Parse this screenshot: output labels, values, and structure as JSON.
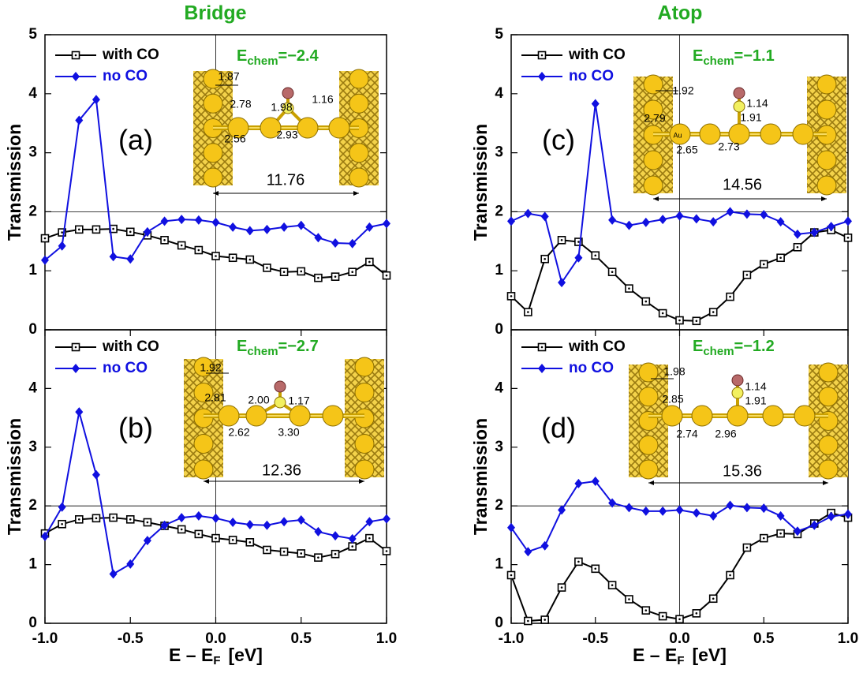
{
  "chart_data": [
    {
      "type": "line",
      "title": "Bridge",
      "panel_label": "(a)",
      "ylabel": "Transmission",
      "echem": {
        "symbol": "E",
        "subscript": "chem",
        "value_text": "=−2.4"
      },
      "inset_labels": [
        "1.87",
        "2.78",
        "1.98",
        "1.16",
        "2.56",
        "2.93",
        "11.76"
      ],
      "x": [
        -1.0,
        -0.9,
        -0.8,
        -0.7,
        -0.6,
        -0.5,
        -0.4,
        -0.3,
        -0.2,
        -0.1,
        0.0,
        0.1,
        0.2,
        0.3,
        0.4,
        0.5,
        0.6,
        0.7,
        0.8,
        0.9,
        1.0
      ],
      "series": [
        {
          "name": "with CO",
          "color": "#000000",
          "marker": "square",
          "values": [
            1.55,
            1.65,
            1.7,
            1.7,
            1.71,
            1.66,
            1.6,
            1.52,
            1.43,
            1.35,
            1.25,
            1.22,
            1.19,
            1.05,
            0.98,
            0.99,
            0.88,
            0.9,
            0.98,
            1.15,
            0.92
          ]
        },
        {
          "name": "no CO",
          "color": "#1010e0",
          "marker": "diamond",
          "values": [
            1.18,
            1.42,
            3.55,
            3.9,
            1.24,
            1.2,
            1.66,
            1.84,
            1.87,
            1.86,
            1.82,
            1.74,
            1.68,
            1.7,
            1.74,
            1.77,
            1.56,
            1.47,
            1.46,
            1.74,
            1.8
          ]
        }
      ],
      "xlim": [
        -1,
        1
      ],
      "ylim": [
        0,
        5
      ],
      "yticks": [
        0,
        1,
        2,
        3,
        4,
        5
      ],
      "hline": 2,
      "vline": 0
    },
    {
      "type": "line",
      "panel_label": "(b)",
      "ylabel": "Transmission",
      "xlabel": {
        "text": "E – E",
        "subscript": "F",
        "unit": "[eV]"
      },
      "echem": {
        "symbol": "E",
        "subscript": "chem",
        "value_text": "=−2.7"
      },
      "inset_labels": [
        "1.92",
        "2.81",
        "2.00",
        "1.17",
        "2.62",
        "3.30",
        "12.36"
      ],
      "x": [
        -1.0,
        -0.9,
        -0.8,
        -0.7,
        -0.6,
        -0.5,
        -0.4,
        -0.3,
        -0.2,
        -0.1,
        0.0,
        0.1,
        0.2,
        0.3,
        0.4,
        0.5,
        0.6,
        0.7,
        0.8,
        0.9,
        1.0
      ],
      "series": [
        {
          "name": "with CO",
          "color": "#000000",
          "marker": "square",
          "values": [
            1.53,
            1.69,
            1.77,
            1.79,
            1.8,
            1.77,
            1.72,
            1.66,
            1.6,
            1.52,
            1.45,
            1.42,
            1.38,
            1.25,
            1.22,
            1.19,
            1.12,
            1.18,
            1.31,
            1.45,
            1.23
          ]
        },
        {
          "name": "no CO",
          "color": "#1010e0",
          "marker": "diamond",
          "values": [
            1.48,
            1.98,
            3.6,
            2.53,
            0.84,
            1.01,
            1.41,
            1.67,
            1.8,
            1.83,
            1.79,
            1.72,
            1.68,
            1.67,
            1.73,
            1.76,
            1.56,
            1.49,
            1.44,
            1.73,
            1.78
          ]
        }
      ],
      "xlim": [
        -1,
        1
      ],
      "ylim": [
        0,
        5
      ],
      "yticks": [
        0,
        1,
        2,
        3,
        4
      ],
      "xticks": [
        {
          "value": -1,
          "label": "-1.0"
        },
        -0.5,
        {
          "value": 0,
          "label": "0.0"
        },
        0.5,
        {
          "value": 1,
          "label": "1.0"
        }
      ],
      "hline": 2,
      "vline": 0
    },
    {
      "type": "line",
      "title": "Atop",
      "panel_label": "(c)",
      "ylabel": "Transmission",
      "echem": {
        "symbol": "E",
        "subscript": "chem",
        "value_text": "=−1.1"
      },
      "inset_labels": [
        "1.92",
        "2.79",
        "1.14",
        "1.91",
        "2.65",
        "2.73",
        "14.56",
        "Au"
      ],
      "x": [
        -1.0,
        -0.9,
        -0.8,
        -0.7,
        -0.6,
        -0.5,
        -0.4,
        -0.3,
        -0.2,
        -0.1,
        0.0,
        0.1,
        0.2,
        0.3,
        0.4,
        0.5,
        0.6,
        0.7,
        0.8,
        0.9,
        1.0
      ],
      "series": [
        {
          "name": "with CO",
          "color": "#000000",
          "marker": "square",
          "values": [
            0.57,
            0.3,
            1.2,
            1.52,
            1.49,
            1.26,
            0.98,
            0.7,
            0.48,
            0.28,
            0.16,
            0.15,
            0.3,
            0.56,
            0.93,
            1.11,
            1.22,
            1.4,
            1.65,
            1.69,
            1.56
          ]
        },
        {
          "name": "no CO",
          "color": "#1010e0",
          "marker": "diamond",
          "values": [
            1.84,
            1.97,
            1.92,
            0.8,
            1.22,
            3.83,
            1.86,
            1.77,
            1.82,
            1.87,
            1.93,
            1.88,
            1.83,
            2.0,
            1.96,
            1.95,
            1.83,
            1.62,
            1.65,
            1.75,
            1.84
          ]
        }
      ],
      "xlim": [
        -1,
        1
      ],
      "ylim": [
        0,
        5
      ],
      "yticks": [
        0,
        1,
        2,
        3,
        4,
        5
      ],
      "hline": 2,
      "vline": 0
    },
    {
      "type": "line",
      "panel_label": "(d)",
      "ylabel": "Transmission",
      "xlabel": {
        "text": "E – E",
        "subscript": "F",
        "unit": "[eV]"
      },
      "echem": {
        "symbol": "E",
        "subscript": "chem",
        "value_text": "=−1.2"
      },
      "inset_labels": [
        "1.98",
        "2.85",
        "1.14",
        "1.91",
        "2.74",
        "2.96",
        "15.36"
      ],
      "x": [
        -1.0,
        -0.9,
        -0.8,
        -0.7,
        -0.6,
        -0.5,
        -0.4,
        -0.3,
        -0.2,
        -0.1,
        0.0,
        0.1,
        0.2,
        0.3,
        0.4,
        0.5,
        0.6,
        0.7,
        0.8,
        0.9,
        1.0
      ],
      "series": [
        {
          "name": "with CO",
          "color": "#000000",
          "marker": "square",
          "values": [
            0.82,
            0.04,
            0.06,
            0.61,
            1.05,
            0.93,
            0.65,
            0.41,
            0.22,
            0.12,
            0.07,
            0.17,
            0.42,
            0.82,
            1.29,
            1.45,
            1.53,
            1.52,
            1.7,
            1.88,
            1.8
          ]
        },
        {
          "name": "no CO",
          "color": "#1010e0",
          "marker": "diamond",
          "values": [
            1.63,
            1.22,
            1.32,
            1.93,
            2.38,
            2.42,
            2.05,
            1.97,
            1.91,
            1.91,
            1.93,
            1.88,
            1.83,
            2.01,
            1.97,
            1.96,
            1.83,
            1.57,
            1.67,
            1.82,
            1.86
          ]
        }
      ],
      "xlim": [
        -1,
        1
      ],
      "ylim": [
        0,
        5
      ],
      "yticks": [
        0,
        1,
        2,
        3,
        4
      ],
      "xticks": [
        {
          "value": -1,
          "label": "-1.0"
        },
        -0.5,
        {
          "value": 0,
          "label": "0.0"
        },
        0.5,
        {
          "value": 1,
          "label": "1.0"
        }
      ],
      "hline": 2,
      "vline": 0
    }
  ]
}
